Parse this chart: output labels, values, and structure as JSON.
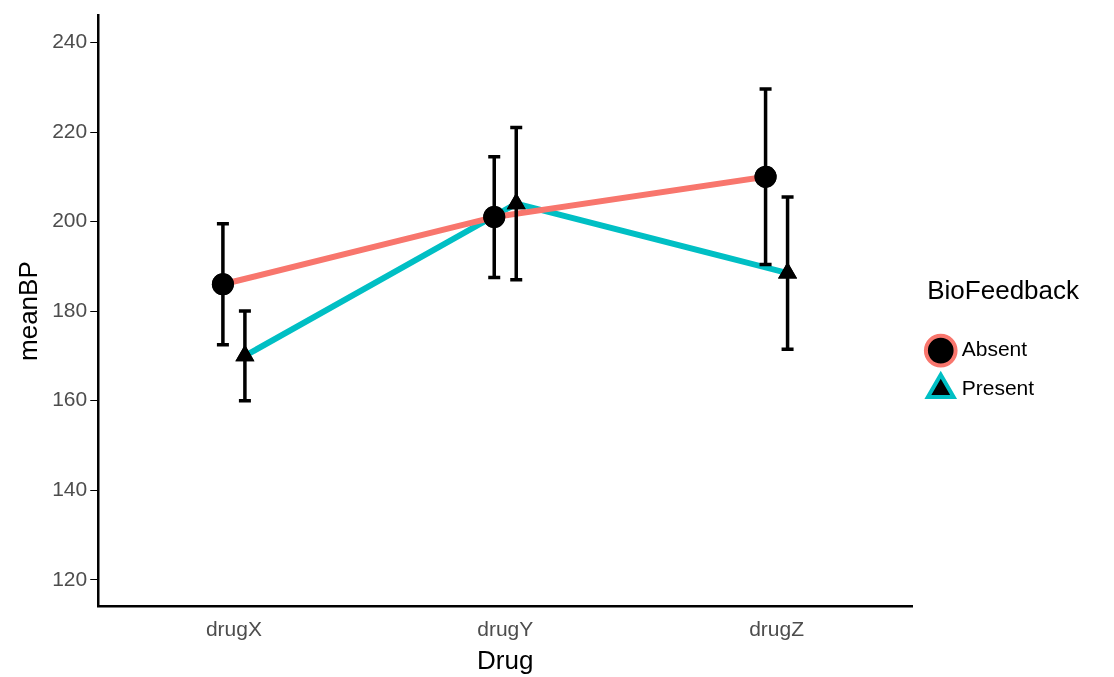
{
  "chart_data": {
    "type": "line",
    "xlabel": "Drug",
    "ylabel": "meanBP",
    "legend_title": "BioFeedback",
    "categories": [
      "drugX",
      "drugY",
      "drugZ"
    ],
    "series": [
      {
        "name": "Absent",
        "color": "#f8766d",
        "marker": "circle",
        "values": [
          186,
          201,
          210
        ],
        "errors": [
          13.5,
          13.5,
          19.6
        ]
      },
      {
        "name": "Present",
        "color": "#00bfc4",
        "marker": "triangle",
        "values": [
          170,
          204,
          188.5
        ],
        "errors": [
          10,
          17,
          17
        ]
      }
    ],
    "ylim": [
      114,
      246
    ],
    "yticks": [
      120,
      140,
      160,
      180,
      200,
      220,
      240
    ],
    "grid": false,
    "legend": "right",
    "line_style": "solid"
  }
}
